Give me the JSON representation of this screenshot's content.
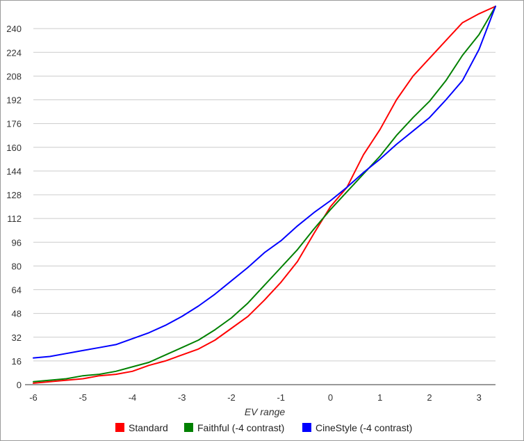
{
  "chart_data": {
    "type": "line",
    "title": "",
    "xlabel": "EV range",
    "ylabel": "",
    "xlim": [
      -6.0,
      3.333
    ],
    "ylim": [
      0,
      256
    ],
    "x_ticks": [
      "-6",
      "-5",
      "-4",
      "-3",
      "-2",
      "-1",
      "0",
      "1",
      "2",
      "3"
    ],
    "y_ticks": [
      "0",
      "16",
      "32",
      "48",
      "64",
      "80",
      "96",
      "112",
      "128",
      "144",
      "160",
      "176",
      "192",
      "208",
      "224",
      "240"
    ],
    "grid": "horizontal",
    "legend_position": "bottom",
    "x": [
      -6,
      -5.667,
      -5.333,
      -5,
      -4.667,
      -4.333,
      -4,
      -3.667,
      -3.333,
      -3,
      -2.667,
      -2.333,
      -2,
      -1.667,
      -1.333,
      -1,
      -0.667,
      -0.333,
      0,
      0.333,
      0.667,
      1,
      1.333,
      1.667,
      2,
      2.333,
      2.667,
      3,
      3.333
    ],
    "series": [
      {
        "name": "Standard",
        "color": "#ff0000",
        "values": [
          1,
          2,
          3,
          4,
          6,
          7,
          9,
          13,
          16,
          20,
          24,
          30,
          38,
          46,
          57,
          69,
          83,
          102,
          120,
          133,
          155,
          172,
          192,
          208,
          220,
          232,
          244,
          250,
          255
        ]
      },
      {
        "name": "Faithful (-4 contrast)",
        "color": "#008000",
        "values": [
          2,
          3,
          4,
          6,
          7,
          9,
          12,
          15,
          20,
          25,
          30,
          37,
          45,
          55,
          67,
          79,
          91,
          105,
          118,
          130,
          142,
          154,
          168,
          180,
          191,
          205,
          222,
          236,
          255
        ]
      },
      {
        "name": "CineStyle (-4 contrast)",
        "color": "#0000ff",
        "values": [
          18,
          19,
          21,
          23,
          25,
          27,
          31,
          35,
          40,
          46,
          53,
          61,
          70,
          79,
          89,
          97,
          107,
          116,
          124,
          133,
          143,
          152,
          162,
          171,
          180,
          192,
          205,
          226,
          255
        ]
      }
    ]
  }
}
